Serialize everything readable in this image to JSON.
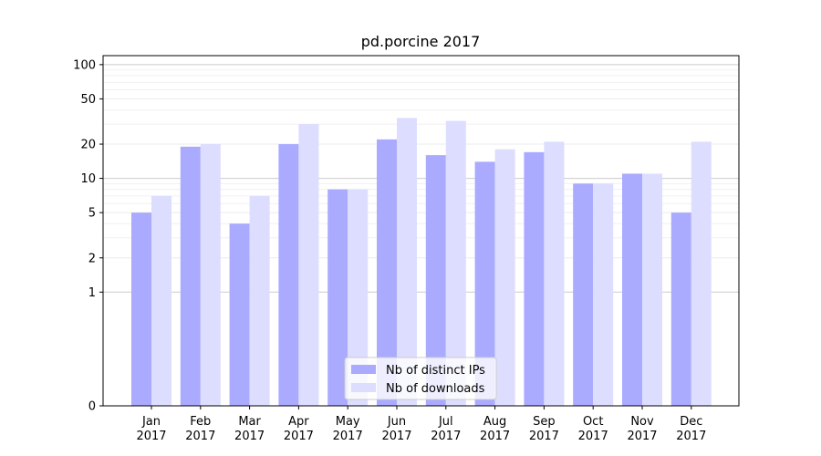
{
  "chart_data": {
    "type": "bar",
    "title": "pd.porcine 2017",
    "xlabel": "",
    "ylabel": "",
    "yscale": "symlog",
    "ylim": [
      0,
      120
    ],
    "yticks": [
      0,
      1,
      2,
      5,
      10,
      20,
      50,
      100
    ],
    "categories": [
      [
        "Jan",
        "2017"
      ],
      [
        "Feb",
        "2017"
      ],
      [
        "Mar",
        "2017"
      ],
      [
        "Apr",
        "2017"
      ],
      [
        "May",
        "2017"
      ],
      [
        "Jun",
        "2017"
      ],
      [
        "Jul",
        "2017"
      ],
      [
        "Aug",
        "2017"
      ],
      [
        "Sep",
        "2017"
      ],
      [
        "Oct",
        "2017"
      ],
      [
        "Nov",
        "2017"
      ],
      [
        "Dec",
        "2017"
      ]
    ],
    "series": [
      {
        "name": "Nb of distinct IPs",
        "color": "#aaaaff",
        "values": [
          5,
          19,
          4,
          20,
          8,
          22,
          16,
          14,
          17,
          9,
          11,
          5
        ]
      },
      {
        "name": "Nb of downloads",
        "color": "#ddddff",
        "values": [
          7,
          20,
          7,
          30,
          8,
          34,
          32,
          18,
          21,
          9,
          11,
          21
        ]
      }
    ],
    "grid": true,
    "legend_position": "bottom-center"
  }
}
